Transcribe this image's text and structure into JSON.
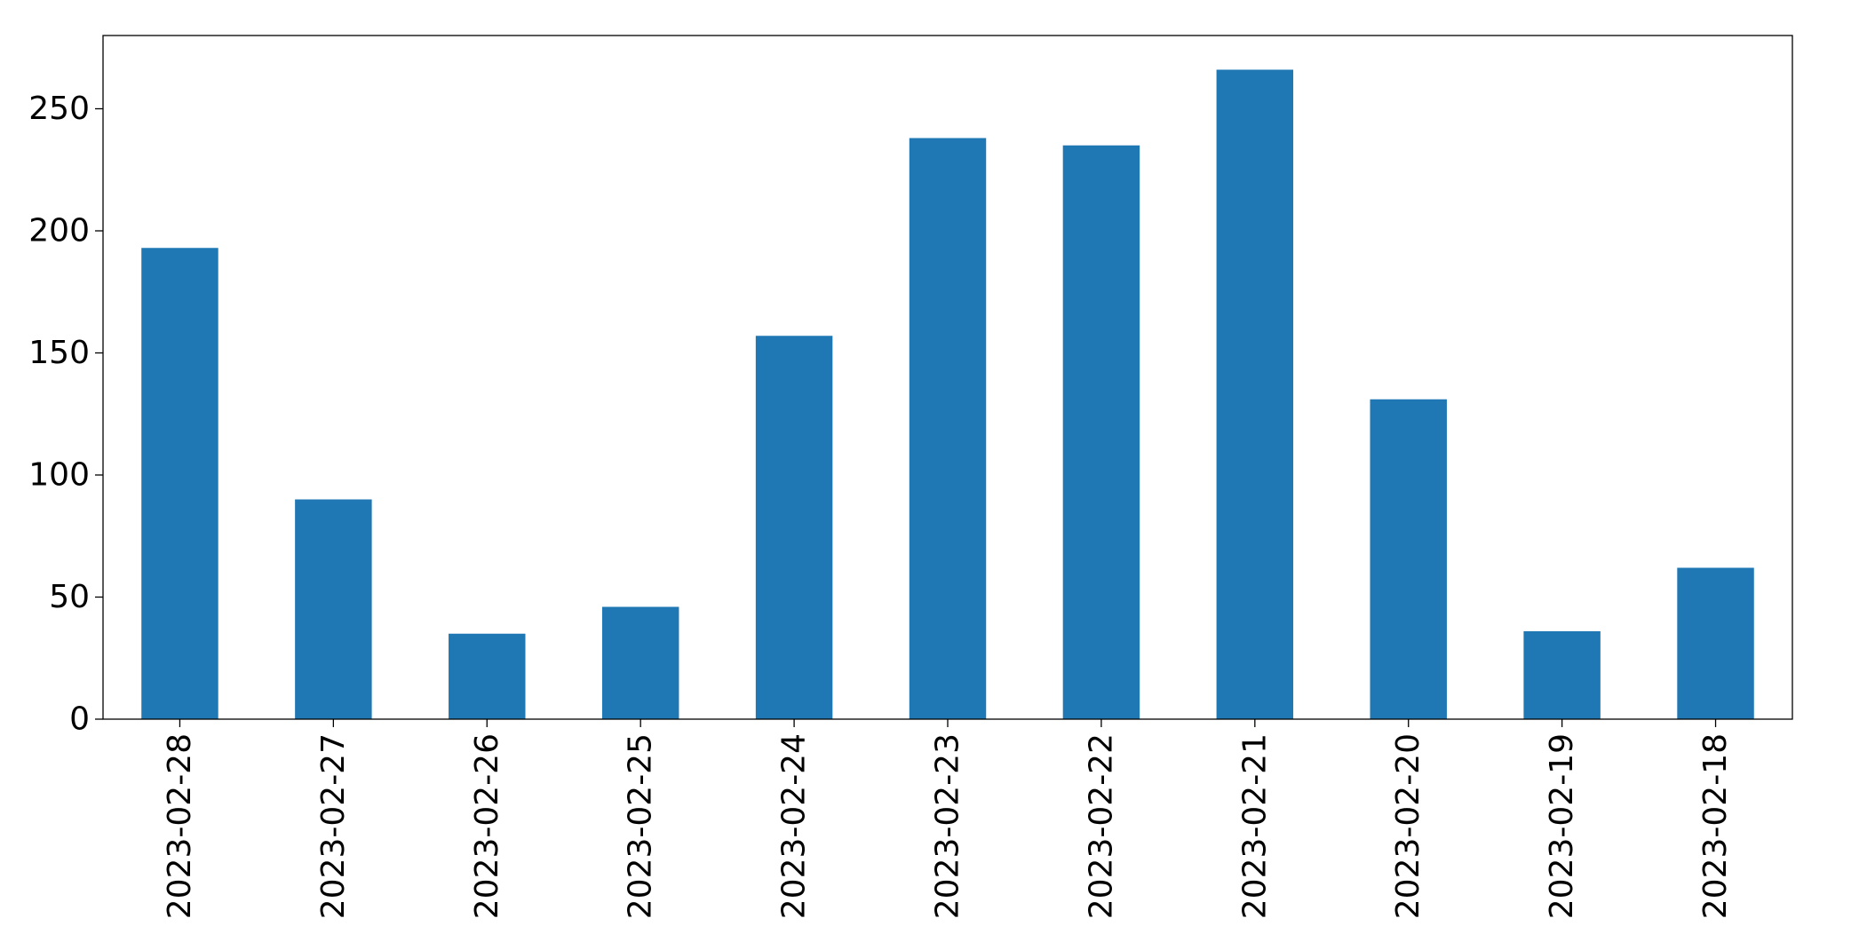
{
  "chart_data": {
    "type": "bar",
    "title": "",
    "xlabel": "",
    "ylabel": "",
    "categories": [
      "2023-02-28",
      "2023-02-27",
      "2023-02-26",
      "2023-02-25",
      "2023-02-24",
      "2023-02-23",
      "2023-02-22",
      "2023-02-21",
      "2023-02-20",
      "2023-02-19",
      "2023-02-18"
    ],
    "values": [
      193,
      90,
      35,
      46,
      157,
      238,
      235,
      266,
      131,
      36,
      62
    ],
    "ylim": [
      0,
      280
    ],
    "yticks": [
      0,
      50,
      100,
      150,
      200,
      250
    ],
    "ytick_labels": [
      "0",
      "50",
      "100",
      "150",
      "200",
      "250"
    ],
    "bar_color": "#1f77b4",
    "grid": false,
    "legend": "none"
  }
}
